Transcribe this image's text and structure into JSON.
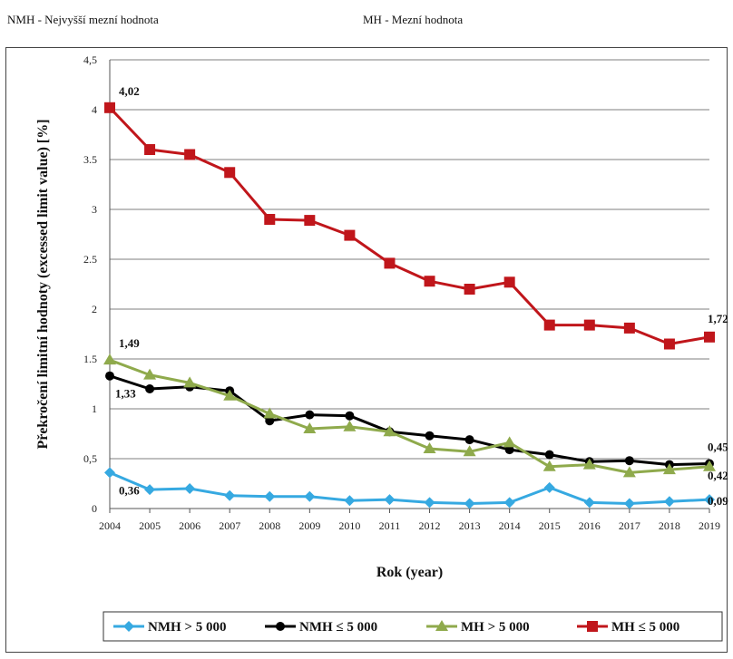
{
  "header": {
    "left_note": "NMH - Nejvyšší mezní hodnota",
    "right_note": "MH - Mezní hodnota"
  },
  "chart_data": {
    "type": "line",
    "xlabel": "Rok (year)",
    "ylabel": "Překročení limitní hodnoty (excessed limit value) [%]",
    "x": [
      2004,
      2005,
      2006,
      2007,
      2008,
      2009,
      2010,
      2011,
      2012,
      2013,
      2014,
      2015,
      2016,
      2017,
      2018,
      2019
    ],
    "ylim": [
      0,
      4.5
    ],
    "yticks": [
      "0",
      "0,5",
      "1",
      "1.5",
      "2",
      "2.5",
      "3",
      "3.5",
      "4",
      "4,5"
    ],
    "grid": true,
    "legend_position": "bottom",
    "series": [
      {
        "name": "NMH > 5 000",
        "color": "#36a9e1",
        "marker": "diamond",
        "values": [
          0.36,
          0.19,
          0.2,
          0.13,
          0.12,
          0.12,
          0.08,
          0.09,
          0.06,
          0.05,
          0.06,
          0.21,
          0.06,
          0.05,
          0.07,
          0.09
        ]
      },
      {
        "name": "NMH ≤ 5 000",
        "color": "#000000",
        "marker": "circle",
        "values": [
          1.33,
          1.2,
          1.22,
          1.18,
          0.88,
          0.94,
          0.93,
          0.77,
          0.73,
          0.69,
          0.59,
          0.54,
          0.47,
          0.48,
          0.44,
          0.45
        ]
      },
      {
        "name": "MH > 5 000",
        "color": "#8faa4c",
        "marker": "triangle",
        "values": [
          1.49,
          1.34,
          1.26,
          1.13,
          0.95,
          0.8,
          0.82,
          0.77,
          0.6,
          0.57,
          0.66,
          0.42,
          0.44,
          0.36,
          0.39,
          0.42
        ]
      },
      {
        "name": "MH ≤ 5 000",
        "color": "#c0161b",
        "marker": "square",
        "values": [
          4.02,
          3.6,
          3.55,
          3.37,
          2.9,
          2.89,
          2.74,
          2.46,
          2.28,
          2.2,
          2.27,
          1.84,
          1.84,
          1.81,
          1.65,
          1.72
        ]
      }
    ],
    "annotations": [
      {
        "text": "4,02",
        "series": 3,
        "x": 2004
      },
      {
        "text": "1,49",
        "series": 2,
        "x": 2004
      },
      {
        "text": "1,33",
        "series": 1,
        "x": 2004
      },
      {
        "text": "0,36",
        "series": 0,
        "x": 2004
      },
      {
        "text": "1,72",
        "series": 3,
        "x": 2019
      },
      {
        "text": "0,45",
        "series": 1,
        "x": 2019
      },
      {
        "text": "0,42",
        "series": 2,
        "x": 2019
      },
      {
        "text": "0,09",
        "series": 0,
        "x": 2019
      }
    ]
  }
}
